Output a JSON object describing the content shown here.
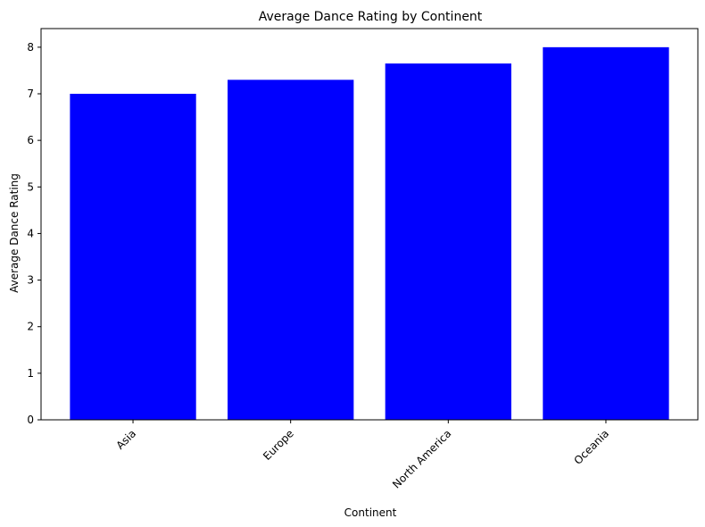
{
  "chart_data": {
    "type": "bar",
    "title": "Average Dance Rating by Continent",
    "xlabel": "Continent",
    "ylabel": "Average Dance Rating",
    "categories": [
      "Asia",
      "Europe",
      "North America",
      "Oceania"
    ],
    "values": [
      7.0,
      7.3,
      7.65,
      8.0
    ],
    "ylim": [
      0,
      8.4
    ],
    "yticks": [
      "0",
      "1",
      "2",
      "3",
      "4",
      "5",
      "6",
      "7",
      "8"
    ],
    "bar_color": "#0000ff",
    "grid": false,
    "xtick_rotation": 45
  }
}
